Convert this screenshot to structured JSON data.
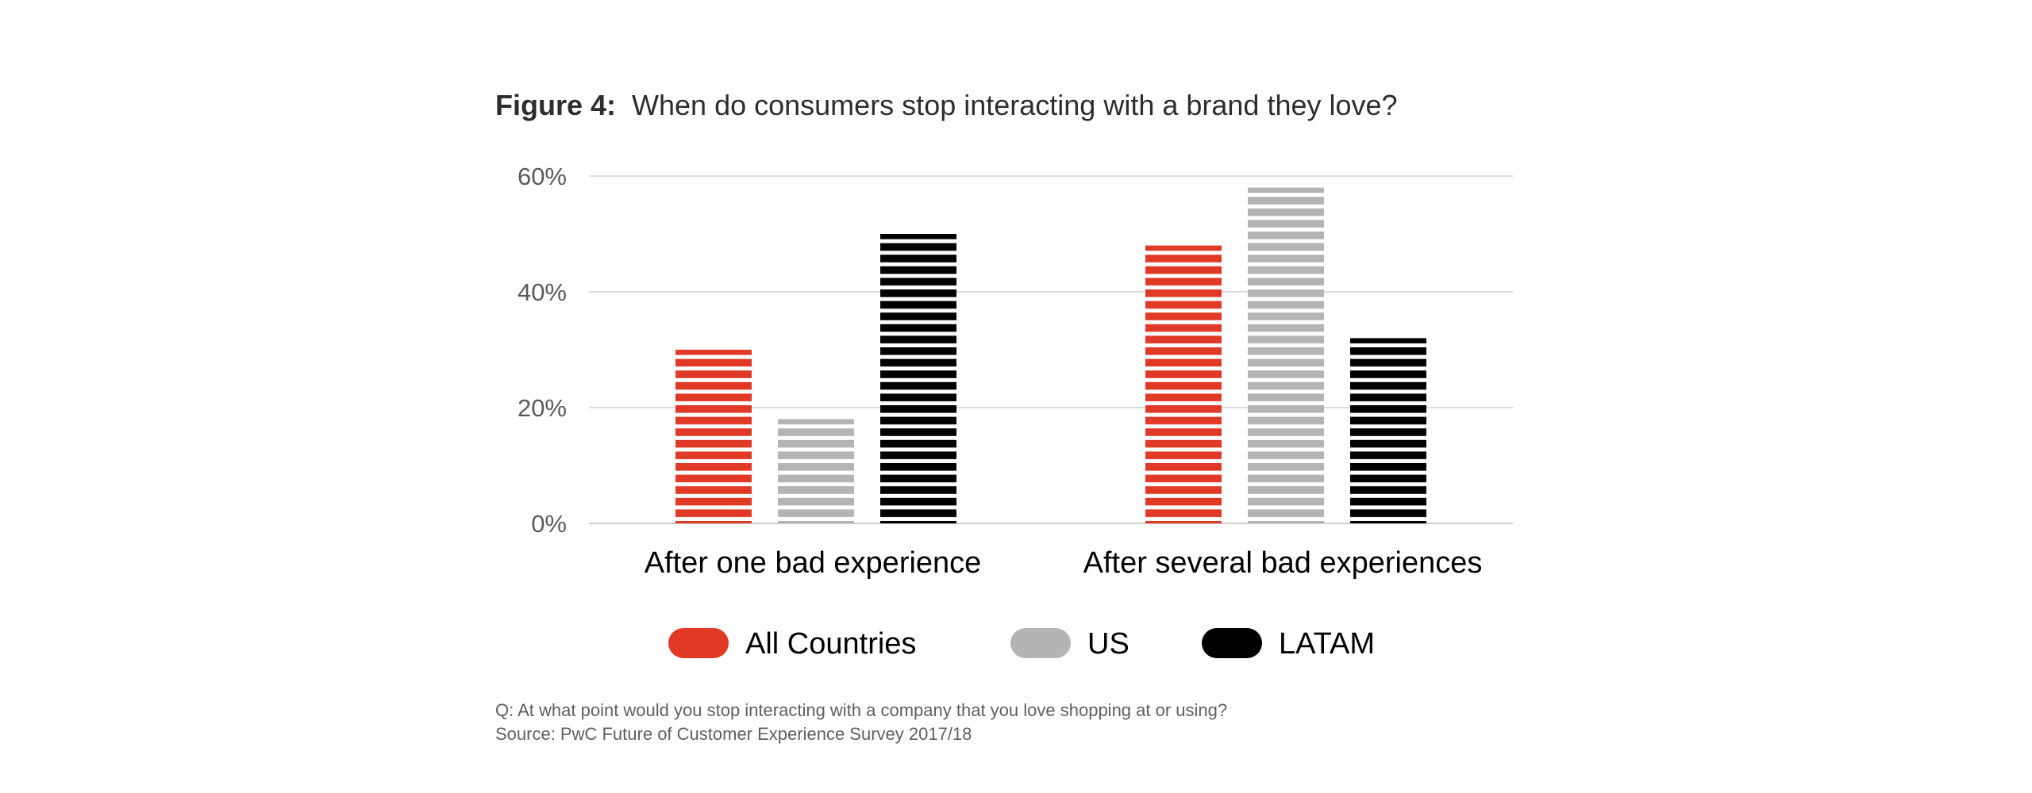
{
  "title": {
    "prefix": "Figure 4:",
    "text": "When do consumers stop interacting with a brand they love?"
  },
  "chart_data": {
    "type": "bar",
    "categories": [
      "After one bad experience",
      "After several bad experiences"
    ],
    "series": [
      {
        "name": "All Countries",
        "values": [
          30,
          48
        ],
        "color": "#e03a26"
      },
      {
        "name": "US",
        "values": [
          18,
          58
        ],
        "color": "#b4b4b4"
      },
      {
        "name": "LATAM",
        "values": [
          50,
          32
        ],
        "color": "#000000"
      }
    ],
    "y_ticks": [
      "0%",
      "20%",
      "40%",
      "60%"
    ],
    "ylim": [
      0,
      60
    ],
    "grid": true,
    "legend_position": "bottom",
    "bar_style": "horizontal-striped"
  },
  "footnote": {
    "question": "Q: At what point would you stop interacting with a company that you love shopping at or using?",
    "source": "Source: PwC Future of Customer Experience Survey 2017/18"
  },
  "colors": {
    "gridline": "#dcdcdc",
    "axis": "#cfcfcf"
  }
}
